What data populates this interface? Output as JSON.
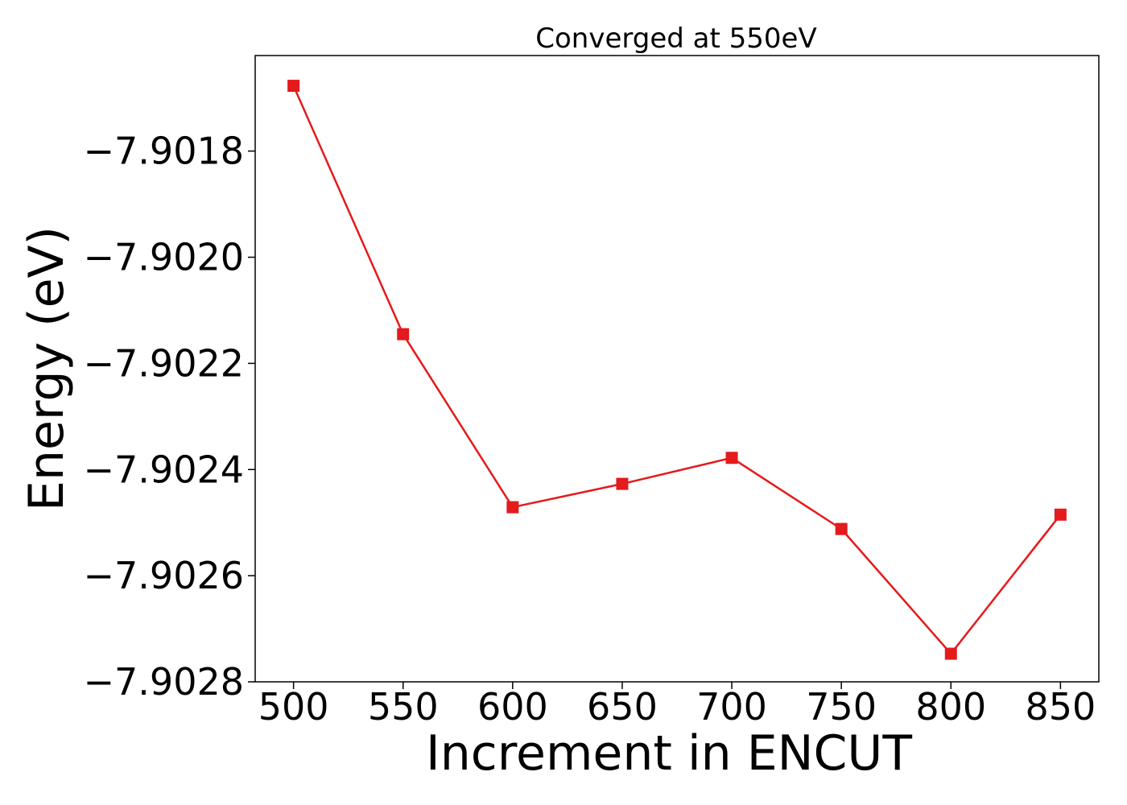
{
  "chart_data": {
    "type": "line",
    "title": "Converged at 550eV",
    "xlabel": "Increment in ENCUT",
    "ylabel": "Energy (eV)",
    "x": [
      500,
      550,
      600,
      650,
      700,
      750,
      800,
      850
    ],
    "x_ticks": [
      500,
      550,
      600,
      650,
      700,
      750,
      800,
      850
    ],
    "x_tick_labels": [
      "500",
      "550",
      "600",
      "650",
      "700",
      "750",
      "800",
      "850"
    ],
    "xlim": [
      482.5,
      867.5
    ],
    "y_ticks": [
      -7.9018,
      -7.902,
      -7.9022,
      -7.9024,
      -7.9026,
      -7.9028
    ],
    "y_tick_labels": [
      "−7.9018",
      "−7.9020",
      "−7.9022",
      "−7.9024",
      "−7.9026",
      "−7.9028"
    ],
    "ylim": [
      -7.9028,
      -7.90162
    ],
    "series": [
      {
        "values": [
          -7.901677,
          -7.902145,
          -7.902471,
          -7.902427,
          -7.902378,
          -7.902512,
          -7.902747,
          -7.902485
        ],
        "color": "#e41a1c",
        "marker": "square"
      }
    ],
    "grid": false,
    "legend": "none"
  }
}
